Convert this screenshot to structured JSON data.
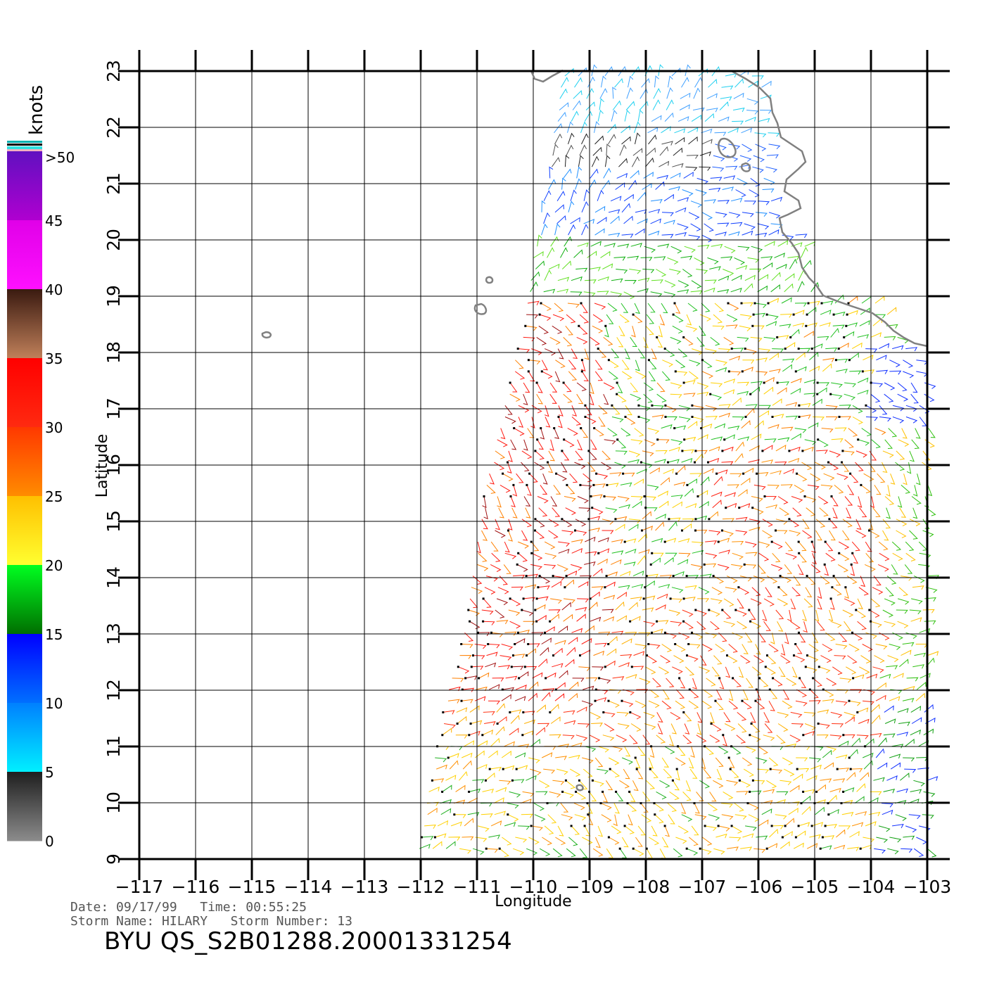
{
  "map": {
    "lon_range": [
      -117,
      -103
    ],
    "lat_range": [
      9,
      23
    ],
    "lon_ticks": [
      "−117",
      "−116",
      "−115",
      "−114",
      "−113",
      "−112",
      "−111",
      "−110",
      "−109",
      "−108",
      "−107",
      "−106",
      "−105",
      "−104",
      "−103"
    ],
    "lat_ticks": [
      "9",
      "10",
      "11",
      "12",
      "13",
      "14",
      "15",
      "16",
      "17",
      "18",
      "19",
      "20",
      "21",
      "22",
      "23"
    ],
    "x_label": "Longitude",
    "y_label": "Latitude",
    "grid": true,
    "coastline_color": "#808080"
  },
  "colorbar": {
    "unit_label": "knots",
    "labels": [
      ">50",
      "45",
      "40",
      "35",
      "30",
      "25",
      "20",
      "15",
      "10",
      "5",
      "0"
    ],
    "bins": [
      {
        "range": [
          0,
          5
        ],
        "colors": [
          "#8c8c8c",
          "#1e1e1e"
        ]
      },
      {
        "range": [
          5,
          10
        ],
        "colors": [
          "#00f0ff",
          "#0080ff"
        ]
      },
      {
        "range": [
          10,
          15
        ],
        "colors": [
          "#0070ff",
          "#0000ff"
        ]
      },
      {
        "range": [
          15,
          20
        ],
        "colors": [
          "#006e00",
          "#00ff20"
        ]
      },
      {
        "range": [
          20,
          25
        ],
        "colors": [
          "#ffff30",
          "#ffc000"
        ]
      },
      {
        "range": [
          25,
          30
        ],
        "colors": [
          "#ff8c00",
          "#ff3800"
        ]
      },
      {
        "range": [
          30,
          35
        ],
        "colors": [
          "#ff2a10",
          "#ff0000"
        ]
      },
      {
        "range": [
          35,
          40
        ],
        "colors": [
          "#c0805a",
          "#3a1a10"
        ]
      },
      {
        "range": [
          40,
          45
        ],
        "colors": [
          "#ff10ff",
          "#e000e8"
        ]
      },
      {
        "range": [
          45,
          50
        ],
        "colors": [
          "#b000d0",
          "#6010c0"
        ]
      }
    ]
  },
  "info": {
    "date_line": "Date: 09/17/99   Time: 00:55:25",
    "storm_line": "Storm Name: HILARY   Storm Number: 13",
    "file_title": "BYU QS_S2B01288.20001331254"
  }
}
